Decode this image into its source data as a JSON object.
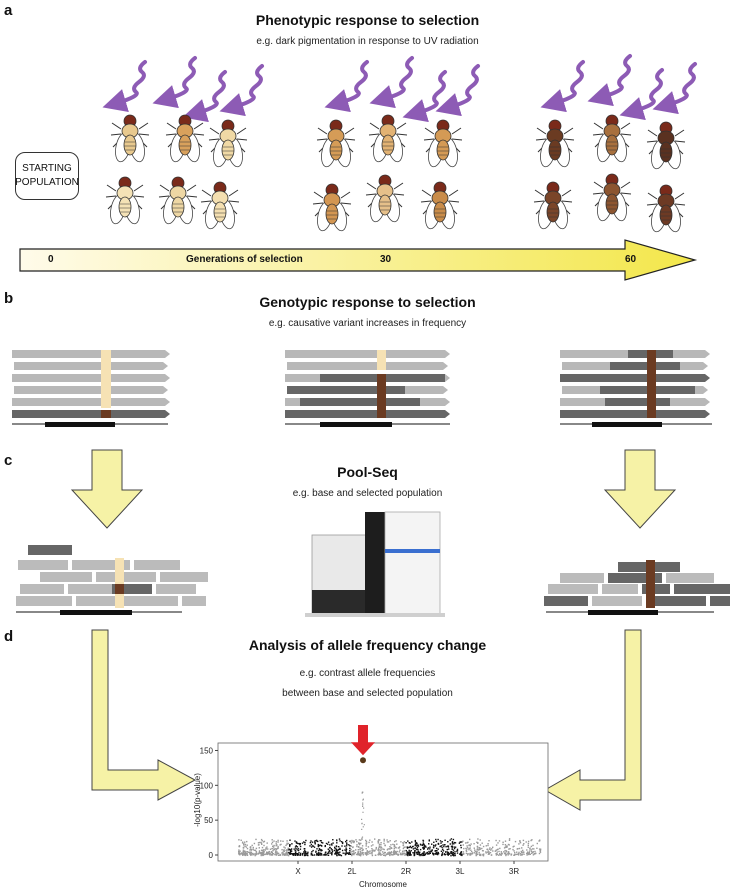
{
  "panels": {
    "a": {
      "letter": "a",
      "title": "Phenotypic response to selection",
      "subtitle": "e.g. dark pigmentation in response to UV radiation",
      "start_label": "STARTING POPULATION",
      "arrow": {
        "caption": "Generations of selection",
        "ticks": [
          "0",
          "30",
          "60"
        ]
      },
      "colors": {
        "light": "#f4dfb0",
        "mid": "#d9a15c",
        "dark": "#6b3b22",
        "uv": "#8d5bb5"
      }
    },
    "b": {
      "letter": "b",
      "title": "Genotypic response to selection",
      "subtitle": "e.g. causative variant increases in frequency"
    },
    "c": {
      "letter": "c",
      "title": "Pool-Seq",
      "subtitle": "e.g. base and selected population"
    },
    "d": {
      "letter": "d",
      "title": "Analysis of allele frequency change",
      "subtitle_line1": "e.g. contrast allele frequencies",
      "subtitle_line2": "between base and selected population"
    }
  },
  "chart_data": {
    "type": "scatter",
    "xlabel": "Chromosome",
    "ylabel": "-log10(p-value)",
    "categories": [
      "X",
      "2L",
      "2R",
      "3L",
      "3R"
    ],
    "yticks": [
      0,
      50,
      100,
      150
    ],
    "ylim": [
      0,
      155
    ],
    "highlight": {
      "label": "peak",
      "chromosome": "2L",
      "value": 136
    },
    "colors": {
      "black": "#111111",
      "grey": "#9a9a9a",
      "marker": "#e0232a"
    }
  }
}
